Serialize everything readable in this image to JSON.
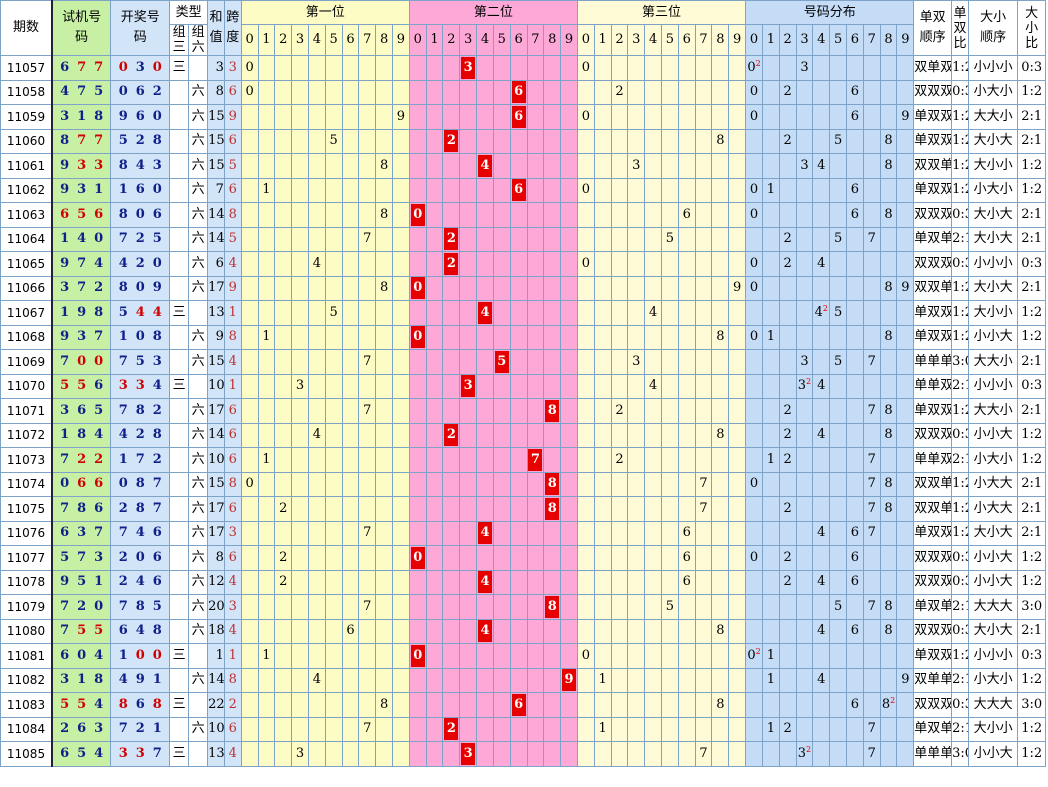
{
  "headers": {
    "issue": "期数",
    "trial": "试机号码",
    "draw": "开奖号码",
    "type": "类型",
    "type_g3": "组三",
    "type_g6": "组六",
    "sum": "和值",
    "span": "跨度",
    "pos1": "第一位",
    "pos2": "第二位",
    "pos3": "第三位",
    "dist": "号码分布",
    "oe_order": "单双顺序",
    "oe_ratio": "单双比",
    "bs_order": "大小顺序",
    "bs_ratio": "大小比",
    "digits": [
      "0",
      "1",
      "2",
      "3",
      "4",
      "5",
      "6",
      "7",
      "8",
      "9"
    ]
  },
  "chart_data": {
    "type": "table",
    "title": "",
    "columns": [
      "期数",
      "试机号码",
      "开奖号码",
      "类型",
      "和值",
      "跨度",
      "第一位",
      "第二位",
      "第三位",
      "号码分布",
      "单双顺序",
      "单双比",
      "大小顺序",
      "大小比"
    ],
    "rows": [
      {
        "issue": "11057",
        "trial": [
          6,
          7,
          7
        ],
        "trial_red": [
          1,
          2
        ],
        "draw": [
          0,
          3,
          0
        ],
        "draw_red": [
          0,
          2
        ],
        "type": "三",
        "sum": 3,
        "span": 3,
        "p1": 0,
        "p2": 3,
        "p3": 0,
        "dist": [
          0,
          3
        ],
        "dup": 0,
        "oe": "双单双",
        "oer": "1:2",
        "bs": "小小小",
        "bsr": "0:3"
      },
      {
        "issue": "11058",
        "trial": [
          4,
          7,
          5
        ],
        "trial_red": [],
        "draw": [
          0,
          6,
          2
        ],
        "draw_red": [],
        "type": "六",
        "sum": 8,
        "span": 6,
        "p1": 0,
        "p2": 6,
        "p3": 2,
        "dist": [
          0,
          2,
          6
        ],
        "dup": -1,
        "oe": "双双双",
        "oer": "0:3",
        "bs": "小大小",
        "bsr": "1:2"
      },
      {
        "issue": "11059",
        "trial": [
          3,
          1,
          8
        ],
        "trial_red": [],
        "draw": [
          9,
          6,
          0
        ],
        "draw_red": [],
        "type": "六",
        "sum": 15,
        "span": 9,
        "p1": 9,
        "p2": 6,
        "p3": 0,
        "dist": [
          0,
          6,
          9
        ],
        "dup": -1,
        "oe": "单双双",
        "oer": "1:2",
        "bs": "大大小",
        "bsr": "2:1"
      },
      {
        "issue": "11060",
        "trial": [
          8,
          7,
          7
        ],
        "trial_red": [
          1,
          2
        ],
        "draw": [
          5,
          2,
          8
        ],
        "draw_red": [],
        "type": "六",
        "sum": 15,
        "span": 6,
        "p1": 5,
        "p2": 2,
        "p3": 8,
        "dist": [
          2,
          5,
          8
        ],
        "dup": -1,
        "oe": "单双双",
        "oer": "1:2",
        "bs": "大小大",
        "bsr": "2:1"
      },
      {
        "issue": "11061",
        "trial": [
          9,
          3,
          3
        ],
        "trial_red": [
          1,
          2
        ],
        "draw": [
          8,
          4,
          3
        ],
        "draw_red": [],
        "type": "六",
        "sum": 15,
        "span": 5,
        "p1": 8,
        "p2": 4,
        "p3": 3,
        "dist": [
          3,
          4,
          8
        ],
        "dup": -1,
        "oe": "双双单",
        "oer": "1:2",
        "bs": "大小小",
        "bsr": "1:2"
      },
      {
        "issue": "11062",
        "trial": [
          9,
          3,
          1
        ],
        "trial_red": [],
        "draw": [
          1,
          6,
          0
        ],
        "draw_red": [],
        "type": "六",
        "sum": 7,
        "span": 6,
        "p1": 1,
        "p2": 6,
        "p3": 0,
        "dist": [
          0,
          1,
          6
        ],
        "dup": -1,
        "oe": "单双双",
        "oer": "1:2",
        "bs": "小大小",
        "bsr": "1:2"
      },
      {
        "issue": "11063",
        "trial": [
          6,
          5,
          6
        ],
        "trial_red": [
          0,
          1,
          2
        ],
        "draw": [
          8,
          0,
          6
        ],
        "draw_red": [],
        "type": "六",
        "sum": 14,
        "span": 8,
        "p1": 8,
        "p2": 0,
        "p3": 6,
        "dist": [
          0,
          6,
          8
        ],
        "dup": -1,
        "oe": "双双双",
        "oer": "0:3",
        "bs": "大小大",
        "bsr": "2:1"
      },
      {
        "issue": "11064",
        "trial": [
          1,
          4,
          0
        ],
        "trial_red": [],
        "draw": [
          7,
          2,
          5
        ],
        "draw_red": [],
        "type": "六",
        "sum": 14,
        "span": 5,
        "p1": 7,
        "p2": 2,
        "p3": 5,
        "dist": [
          2,
          5,
          7
        ],
        "dup": -1,
        "oe": "单双单",
        "oer": "2:1",
        "bs": "大小大",
        "bsr": "2:1"
      },
      {
        "issue": "11065",
        "trial": [
          9,
          7,
          4
        ],
        "trial_red": [],
        "draw": [
          4,
          2,
          0
        ],
        "draw_red": [],
        "type": "六",
        "sum": 6,
        "span": 4,
        "p1": 4,
        "p2": 2,
        "p3": 0,
        "dist": [
          0,
          2,
          4
        ],
        "dup": -1,
        "oe": "双双双",
        "oer": "0:3",
        "bs": "小小小",
        "bsr": "0:3"
      },
      {
        "issue": "11066",
        "trial": [
          3,
          7,
          2
        ],
        "trial_red": [],
        "draw": [
          8,
          0,
          9
        ],
        "draw_red": [],
        "type": "六",
        "sum": 17,
        "span": 9,
        "p1": 8,
        "p2": 0,
        "p3": 9,
        "dist": [
          0,
          8,
          9
        ],
        "dup": -1,
        "oe": "双双单",
        "oer": "1:2",
        "bs": "大小大",
        "bsr": "2:1"
      },
      {
        "issue": "11067",
        "trial": [
          1,
          9,
          8
        ],
        "trial_red": [],
        "draw": [
          5,
          4,
          4
        ],
        "draw_red": [
          1,
          2
        ],
        "type": "三",
        "sum": 13,
        "span": 1,
        "p1": 5,
        "p2": 4,
        "p3": 4,
        "dist": [
          4,
          5
        ],
        "dup": 4,
        "oe": "单双双",
        "oer": "1:2",
        "bs": "大小小",
        "bsr": "1:2"
      },
      {
        "issue": "11068",
        "trial": [
          9,
          3,
          7
        ],
        "trial_red": [],
        "draw": [
          1,
          0,
          8
        ],
        "draw_red": [],
        "type": "六",
        "sum": 9,
        "span": 8,
        "p1": 1,
        "p2": 0,
        "p3": 8,
        "dist": [
          0,
          1,
          8
        ],
        "dup": -1,
        "oe": "单双双",
        "oer": "1:2",
        "bs": "小小大",
        "bsr": "1:2"
      },
      {
        "issue": "11069",
        "trial": [
          7,
          0,
          0
        ],
        "trial_red": [
          1,
          2
        ],
        "draw": [
          7,
          5,
          3
        ],
        "draw_red": [],
        "type": "六",
        "sum": 15,
        "span": 4,
        "p1": 7,
        "p2": 5,
        "p3": 3,
        "dist": [
          3,
          5,
          7
        ],
        "dup": -1,
        "oe": "单单单",
        "oer": "3:0",
        "bs": "大大小",
        "bsr": "2:1"
      },
      {
        "issue": "11070",
        "trial": [
          5,
          5,
          6
        ],
        "trial_red": [
          0,
          1
        ],
        "draw": [
          3,
          3,
          4
        ],
        "draw_red": [
          0,
          1
        ],
        "type": "三",
        "sum": 10,
        "span": 1,
        "p1": 3,
        "p2": 3,
        "p3": 4,
        "dist": [
          3,
          4
        ],
        "dup": 3,
        "oe": "单单双",
        "oer": "2:1",
        "bs": "小小小",
        "bsr": "0:3"
      },
      {
        "issue": "11071",
        "trial": [
          3,
          6,
          5
        ],
        "trial_red": [],
        "draw": [
          7,
          8,
          2
        ],
        "draw_red": [],
        "type": "六",
        "sum": 17,
        "span": 6,
        "p1": 7,
        "p2": 8,
        "p3": 2,
        "dist": [
          2,
          7,
          8
        ],
        "dup": -1,
        "oe": "单双双",
        "oer": "1:2",
        "bs": "大大小",
        "bsr": "2:1"
      },
      {
        "issue": "11072",
        "trial": [
          1,
          8,
          4
        ],
        "trial_red": [],
        "draw": [
          4,
          2,
          8
        ],
        "draw_red": [],
        "type": "六",
        "sum": 14,
        "span": 6,
        "p1": 4,
        "p2": 2,
        "p3": 8,
        "dist": [
          2,
          4,
          8
        ],
        "dup": -1,
        "oe": "双双双",
        "oer": "0:3",
        "bs": "小小大",
        "bsr": "1:2"
      },
      {
        "issue": "11073",
        "trial": [
          7,
          2,
          2
        ],
        "trial_red": [
          1,
          2
        ],
        "draw": [
          1,
          7,
          2
        ],
        "draw_red": [],
        "type": "六",
        "sum": 10,
        "span": 6,
        "p1": 1,
        "p2": 7,
        "p3": 2,
        "dist": [
          1,
          2,
          7
        ],
        "dup": -1,
        "oe": "单单双",
        "oer": "2:1",
        "bs": "小大小",
        "bsr": "1:2"
      },
      {
        "issue": "11074",
        "trial": [
          0,
          6,
          6
        ],
        "trial_red": [
          1,
          2
        ],
        "draw": [
          0,
          8,
          7
        ],
        "draw_red": [],
        "type": "六",
        "sum": 15,
        "span": 8,
        "p1": 0,
        "p2": 8,
        "p3": 7,
        "dist": [
          0,
          7,
          8
        ],
        "dup": -1,
        "oe": "双双单",
        "oer": "1:2",
        "bs": "小大大",
        "bsr": "2:1"
      },
      {
        "issue": "11075",
        "trial": [
          7,
          8,
          6
        ],
        "trial_red": [],
        "draw": [
          2,
          8,
          7
        ],
        "draw_red": [],
        "type": "六",
        "sum": 17,
        "span": 6,
        "p1": 2,
        "p2": 8,
        "p3": 7,
        "dist": [
          2,
          7,
          8
        ],
        "dup": -1,
        "oe": "双双单",
        "oer": "1:2",
        "bs": "小大大",
        "bsr": "2:1"
      },
      {
        "issue": "11076",
        "trial": [
          6,
          3,
          7
        ],
        "trial_red": [],
        "draw": [
          7,
          4,
          6
        ],
        "draw_red": [],
        "type": "六",
        "sum": 17,
        "span": 3,
        "p1": 7,
        "p2": 4,
        "p3": 6,
        "dist": [
          4,
          6,
          7
        ],
        "dup": -1,
        "oe": "单双双",
        "oer": "1:2",
        "bs": "大小大",
        "bsr": "2:1"
      },
      {
        "issue": "11077",
        "trial": [
          5,
          7,
          3
        ],
        "trial_red": [],
        "draw": [
          2,
          0,
          6
        ],
        "draw_red": [],
        "type": "六",
        "sum": 8,
        "span": 6,
        "p1": 2,
        "p2": 0,
        "p3": 6,
        "dist": [
          0,
          2,
          6
        ],
        "dup": -1,
        "oe": "双双双",
        "oer": "0:3",
        "bs": "小小大",
        "bsr": "1:2"
      },
      {
        "issue": "11078",
        "trial": [
          9,
          5,
          1
        ],
        "trial_red": [],
        "draw": [
          2,
          4,
          6
        ],
        "draw_red": [],
        "type": "六",
        "sum": 12,
        "span": 4,
        "p1": 2,
        "p2": 4,
        "p3": 6,
        "dist": [
          2,
          4,
          6
        ],
        "dup": -1,
        "oe": "双双双",
        "oer": "0:3",
        "bs": "小小大",
        "bsr": "1:2"
      },
      {
        "issue": "11079",
        "trial": [
          7,
          2,
          0
        ],
        "trial_red": [],
        "draw": [
          7,
          8,
          5
        ],
        "draw_red": [],
        "type": "六",
        "sum": 20,
        "span": 3,
        "p1": 7,
        "p2": 8,
        "p3": 5,
        "dist": [
          5,
          7,
          8
        ],
        "dup": -1,
        "oe": "单双单",
        "oer": "2:1",
        "bs": "大大大",
        "bsr": "3:0"
      },
      {
        "issue": "11080",
        "trial": [
          7,
          5,
          5
        ],
        "trial_red": [
          1,
          2
        ],
        "draw": [
          6,
          4,
          8
        ],
        "draw_red": [],
        "type": "六",
        "sum": 18,
        "span": 4,
        "p1": 6,
        "p2": 4,
        "p3": 8,
        "dist": [
          4,
          6,
          8
        ],
        "dup": -1,
        "oe": "双双双",
        "oer": "0:3",
        "bs": "大小大",
        "bsr": "2:1"
      },
      {
        "issue": "11081",
        "trial": [
          6,
          0,
          4
        ],
        "trial_red": [],
        "draw": [
          1,
          0,
          0
        ],
        "draw_red": [
          1,
          2
        ],
        "type": "三",
        "sum": 1,
        "span": 1,
        "p1": 1,
        "p2": 0,
        "p3": 0,
        "dist": [
          0,
          1
        ],
        "dup": 0,
        "oe": "单双双",
        "oer": "1:2",
        "bs": "小小小",
        "bsr": "0:3"
      },
      {
        "issue": "11082",
        "trial": [
          3,
          1,
          8
        ],
        "trial_red": [],
        "draw": [
          4,
          9,
          1
        ],
        "draw_red": [],
        "type": "六",
        "sum": 14,
        "span": 8,
        "p1": 4,
        "p2": 9,
        "p3": 1,
        "dist": [
          1,
          4,
          9
        ],
        "dup": -1,
        "oe": "双单单",
        "oer": "2:1",
        "bs": "小大小",
        "bsr": "1:2"
      },
      {
        "issue": "11083",
        "trial": [
          5,
          5,
          4
        ],
        "trial_red": [
          0,
          1
        ],
        "draw": [
          8,
          6,
          8
        ],
        "draw_red": [
          0,
          2
        ],
        "type": "三",
        "sum": 22,
        "span": 2,
        "p1": 8,
        "p2": 6,
        "p3": 8,
        "dist": [
          6,
          8
        ],
        "dup": 8,
        "oe": "双双双",
        "oer": "0:3",
        "bs": "大大大",
        "bsr": "3:0"
      },
      {
        "issue": "11084",
        "trial": [
          2,
          6,
          3
        ],
        "trial_red": [],
        "draw": [
          7,
          2,
          1
        ],
        "draw_red": [],
        "type": "六",
        "sum": 10,
        "span": 6,
        "p1": 7,
        "p2": 2,
        "p3": 1,
        "dist": [
          1,
          2,
          7
        ],
        "dup": -1,
        "oe": "单双单",
        "oer": "2:1",
        "bs": "大小小",
        "bsr": "1:2"
      },
      {
        "issue": "11085",
        "trial": [
          6,
          5,
          4
        ],
        "trial_red": [],
        "draw": [
          3,
          3,
          7
        ],
        "draw_red": [
          0,
          1
        ],
        "type": "三",
        "sum": 13,
        "span": 4,
        "p1": 3,
        "p2": 3,
        "p3": 7,
        "dist": [
          3,
          7
        ],
        "dup": 3,
        "oe": "单单单",
        "oer": "3:0",
        "bs": "小小大",
        "bsr": "1:2"
      }
    ]
  },
  "colors": {
    "trial_bg": "#c8f0a4",
    "draw_bg": "#d2e4f7",
    "zone1_bg": "#fdfcc4",
    "zone2_bg": "#fda8d6",
    "zone3_bg": "#fefbd6",
    "zone4_bg": "#c4dcf6",
    "hit_red": "#e60000",
    "text_red": "#d00000",
    "text_blue": "#10208a"
  }
}
